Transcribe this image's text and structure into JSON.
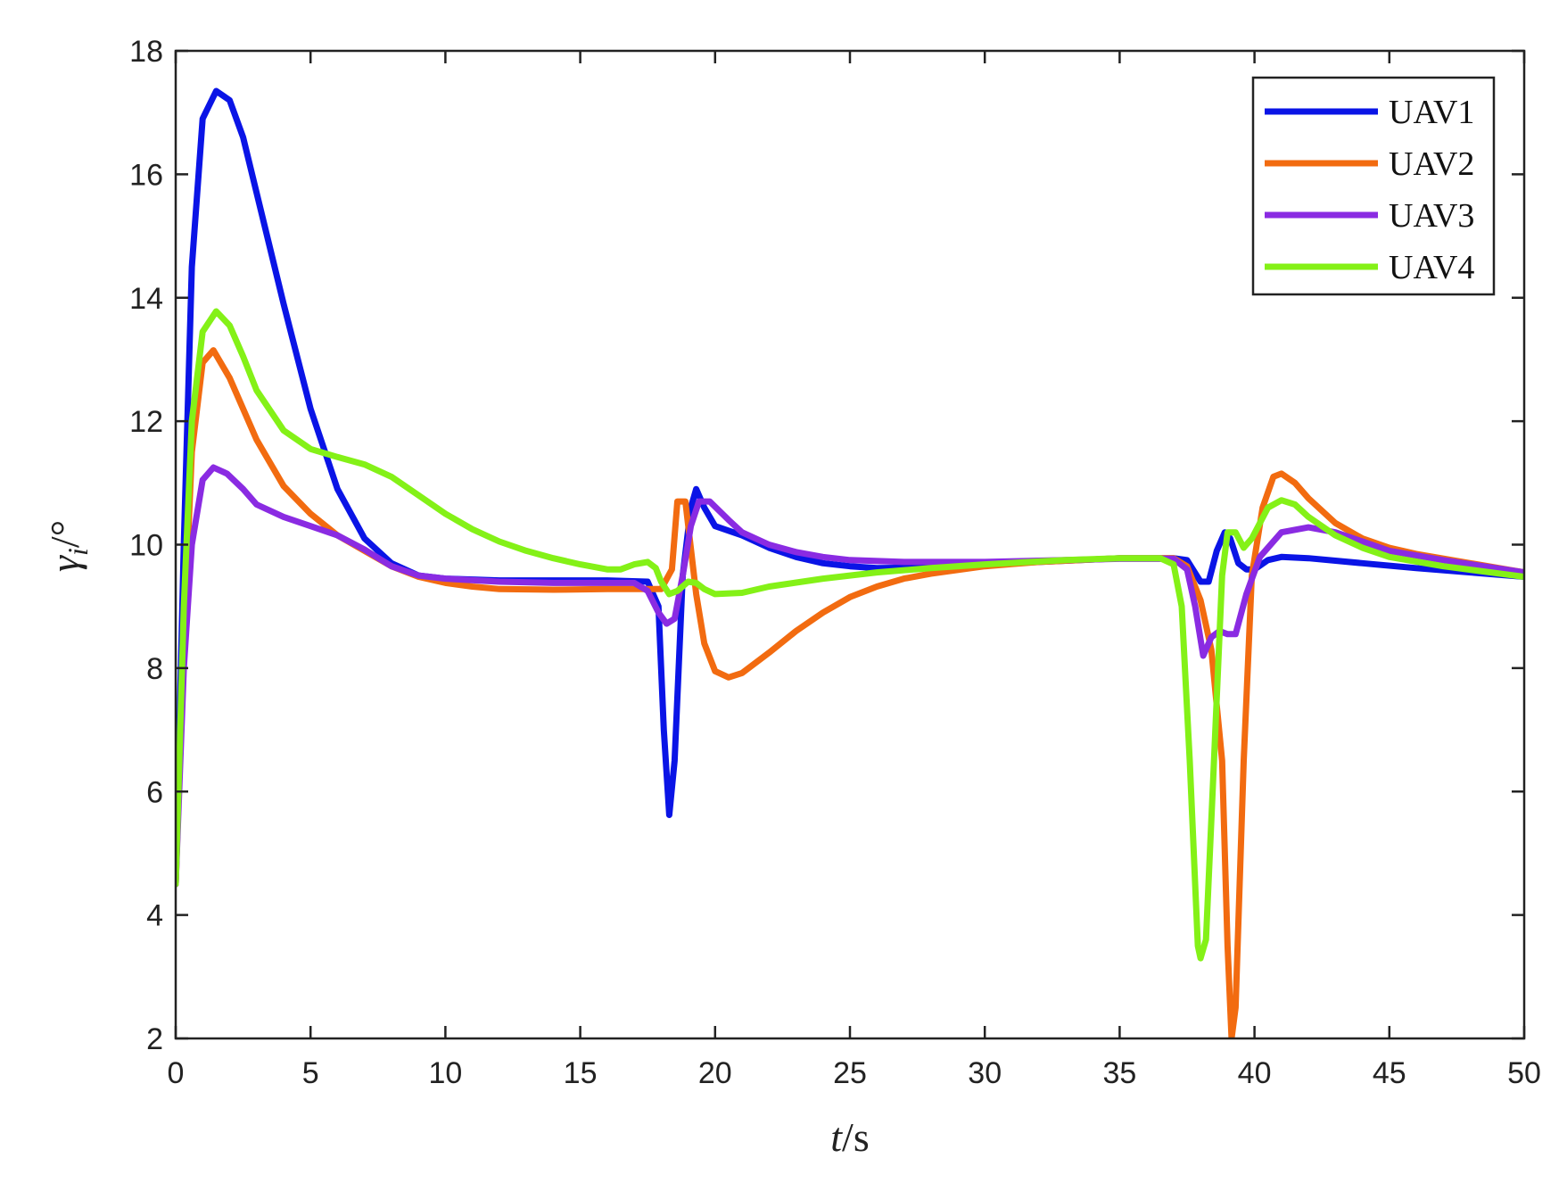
{
  "chart_data": {
    "type": "line",
    "title": "",
    "xlabel": {
      "italic": "t",
      "rest": "/s"
    },
    "ylabel": {
      "italic": "γ",
      "subscript": "i",
      "rest": "/°"
    },
    "xlim": [
      0,
      50
    ],
    "ylim": [
      2,
      18
    ],
    "xticks": [
      0,
      5,
      10,
      15,
      20,
      25,
      30,
      35,
      40,
      45,
      50
    ],
    "yticks": [
      2,
      4,
      6,
      8,
      10,
      12,
      14,
      16,
      18
    ],
    "grid": false,
    "legend_position": "top-right",
    "series": [
      {
        "name": "UAV1",
        "color": "#0a14e6",
        "points": [
          [
            0,
            4.5
          ],
          [
            0.3,
            10
          ],
          [
            0.6,
            14.5
          ],
          [
            1.0,
            16.9
          ],
          [
            1.5,
            17.35
          ],
          [
            2.0,
            17.2
          ],
          [
            2.5,
            16.6
          ],
          [
            3.0,
            15.7
          ],
          [
            4.0,
            13.9
          ],
          [
            5.0,
            12.2
          ],
          [
            6.0,
            10.9
          ],
          [
            7.0,
            10.1
          ],
          [
            8.0,
            9.7
          ],
          [
            9.0,
            9.5
          ],
          [
            10.0,
            9.45
          ],
          [
            12.0,
            9.42
          ],
          [
            14.0,
            9.42
          ],
          [
            16.0,
            9.42
          ],
          [
            17.5,
            9.4
          ],
          [
            17.9,
            9.0
          ],
          [
            18.1,
            7.0
          ],
          [
            18.3,
            5.62
          ],
          [
            18.5,
            6.5
          ],
          [
            18.8,
            9.5
          ],
          [
            19.1,
            10.6
          ],
          [
            19.3,
            10.9
          ],
          [
            19.6,
            10.6
          ],
          [
            20.0,
            10.3
          ],
          [
            21.0,
            10.15
          ],
          [
            22.0,
            9.95
          ],
          [
            23.0,
            9.8
          ],
          [
            24.0,
            9.7
          ],
          [
            25.0,
            9.65
          ],
          [
            26.0,
            9.62
          ],
          [
            28.0,
            9.63
          ],
          [
            30.0,
            9.68
          ],
          [
            32.0,
            9.72
          ],
          [
            35.0,
            9.78
          ],
          [
            37.0,
            9.78
          ],
          [
            37.5,
            9.75
          ],
          [
            38.0,
            9.4
          ],
          [
            38.3,
            9.4
          ],
          [
            38.6,
            9.9
          ],
          [
            38.9,
            10.2
          ],
          [
            39.1,
            10.1
          ],
          [
            39.4,
            9.7
          ],
          [
            39.7,
            9.6
          ],
          [
            40.0,
            9.6
          ],
          [
            40.5,
            9.75
          ],
          [
            41.0,
            9.8
          ],
          [
            42.0,
            9.78
          ],
          [
            44.0,
            9.7
          ],
          [
            46.0,
            9.62
          ],
          [
            48.0,
            9.55
          ],
          [
            50.0,
            9.48
          ]
        ]
      },
      {
        "name": "UAV2",
        "color": "#f26b10",
        "points": [
          [
            0,
            4.5
          ],
          [
            0.3,
            8.5
          ],
          [
            0.6,
            11.5
          ],
          [
            1.0,
            12.95
          ],
          [
            1.4,
            13.15
          ],
          [
            2.0,
            12.7
          ],
          [
            3.0,
            11.7
          ],
          [
            4.0,
            10.95
          ],
          [
            5.0,
            10.5
          ],
          [
            6.0,
            10.15
          ],
          [
            7.0,
            9.9
          ],
          [
            8.0,
            9.65
          ],
          [
            9.0,
            9.48
          ],
          [
            10.0,
            9.38
          ],
          [
            11.0,
            9.32
          ],
          [
            12.0,
            9.28
          ],
          [
            14.0,
            9.27
          ],
          [
            16.0,
            9.28
          ],
          [
            18.0,
            9.28
          ],
          [
            18.4,
            9.6
          ],
          [
            18.6,
            10.7
          ],
          [
            18.9,
            10.7
          ],
          [
            19.3,
            9.2
          ],
          [
            19.6,
            8.4
          ],
          [
            20.0,
            7.95
          ],
          [
            20.5,
            7.85
          ],
          [
            21.0,
            7.92
          ],
          [
            22.0,
            8.25
          ],
          [
            23.0,
            8.6
          ],
          [
            24.0,
            8.9
          ],
          [
            25.0,
            9.15
          ],
          [
            26.0,
            9.32
          ],
          [
            27.0,
            9.45
          ],
          [
            28.0,
            9.53
          ],
          [
            30.0,
            9.65
          ],
          [
            32.0,
            9.72
          ],
          [
            35.0,
            9.78
          ],
          [
            37.0,
            9.78
          ],
          [
            37.5,
            9.65
          ],
          [
            38.0,
            9.1
          ],
          [
            38.4,
            8.3
          ],
          [
            38.8,
            6.5
          ],
          [
            39.0,
            3.5
          ],
          [
            39.15,
            2.0
          ],
          [
            39.3,
            2.5
          ],
          [
            39.6,
            6.5
          ],
          [
            39.9,
            9.5
          ],
          [
            40.3,
            10.6
          ],
          [
            40.7,
            11.1
          ],
          [
            41.0,
            11.15
          ],
          [
            41.5,
            11.0
          ],
          [
            42.0,
            10.75
          ],
          [
            43.0,
            10.35
          ],
          [
            44.0,
            10.1
          ],
          [
            45.0,
            9.95
          ],
          [
            46.0,
            9.85
          ],
          [
            48.0,
            9.7
          ],
          [
            50.0,
            9.55
          ]
        ]
      },
      {
        "name": "UAV3",
        "color": "#8a2be2",
        "points": [
          [
            0,
            4.5
          ],
          [
            0.3,
            8.0
          ],
          [
            0.6,
            10.0
          ],
          [
            1.0,
            11.05
          ],
          [
            1.4,
            11.25
          ],
          [
            1.9,
            11.15
          ],
          [
            2.5,
            10.9
          ],
          [
            3.0,
            10.65
          ],
          [
            4.0,
            10.45
          ],
          [
            5.0,
            10.3
          ],
          [
            6.0,
            10.15
          ],
          [
            7.0,
            9.92
          ],
          [
            8.0,
            9.65
          ],
          [
            9.0,
            9.5
          ],
          [
            10.0,
            9.45
          ],
          [
            12.0,
            9.4
          ],
          [
            14.0,
            9.38
          ],
          [
            16.0,
            9.38
          ],
          [
            17.0,
            9.38
          ],
          [
            17.5,
            9.25
          ],
          [
            17.9,
            8.9
          ],
          [
            18.2,
            8.72
          ],
          [
            18.5,
            8.8
          ],
          [
            18.8,
            9.5
          ],
          [
            19.1,
            10.3
          ],
          [
            19.4,
            10.7
          ],
          [
            19.8,
            10.7
          ],
          [
            20.5,
            10.4
          ],
          [
            21.0,
            10.2
          ],
          [
            22.0,
            10.0
          ],
          [
            23.0,
            9.88
          ],
          [
            24.0,
            9.8
          ],
          [
            25.0,
            9.75
          ],
          [
            27.0,
            9.72
          ],
          [
            30.0,
            9.72
          ],
          [
            33.0,
            9.75
          ],
          [
            35.0,
            9.77
          ],
          [
            37.0,
            9.77
          ],
          [
            37.5,
            9.6
          ],
          [
            37.8,
            9.0
          ],
          [
            38.1,
            8.2
          ],
          [
            38.4,
            8.5
          ],
          [
            38.7,
            8.6
          ],
          [
            39.0,
            8.55
          ],
          [
            39.3,
            8.55
          ],
          [
            39.7,
            9.2
          ],
          [
            40.2,
            9.8
          ],
          [
            41.0,
            10.2
          ],
          [
            42.0,
            10.28
          ],
          [
            43.0,
            10.2
          ],
          [
            44.0,
            10.05
          ],
          [
            45.0,
            9.9
          ],
          [
            47.0,
            9.75
          ],
          [
            50.0,
            9.55
          ]
        ]
      },
      {
        "name": "UAV4",
        "color": "#84f117",
        "points": [
          [
            0,
            4.5
          ],
          [
            0.3,
            9.0
          ],
          [
            0.6,
            12.0
          ],
          [
            1.0,
            13.45
          ],
          [
            1.5,
            13.78
          ],
          [
            2.0,
            13.55
          ],
          [
            2.5,
            13.05
          ],
          [
            3.0,
            12.5
          ],
          [
            4.0,
            11.85
          ],
          [
            5.0,
            11.55
          ],
          [
            6.0,
            11.42
          ],
          [
            7.0,
            11.3
          ],
          [
            8.0,
            11.1
          ],
          [
            9.0,
            10.8
          ],
          [
            10.0,
            10.5
          ],
          [
            11.0,
            10.25
          ],
          [
            12.0,
            10.05
          ],
          [
            13.0,
            9.9
          ],
          [
            14.0,
            9.78
          ],
          [
            15.0,
            9.68
          ],
          [
            16.0,
            9.6
          ],
          [
            16.5,
            9.6
          ],
          [
            17.0,
            9.68
          ],
          [
            17.5,
            9.72
          ],
          [
            17.8,
            9.62
          ],
          [
            18.0,
            9.4
          ],
          [
            18.3,
            9.2
          ],
          [
            18.6,
            9.25
          ],
          [
            19.0,
            9.4
          ],
          [
            19.3,
            9.38
          ],
          [
            19.6,
            9.28
          ],
          [
            20.0,
            9.2
          ],
          [
            21.0,
            9.22
          ],
          [
            22.0,
            9.32
          ],
          [
            24.0,
            9.45
          ],
          [
            26.0,
            9.55
          ],
          [
            28.0,
            9.62
          ],
          [
            30.0,
            9.68
          ],
          [
            33.0,
            9.75
          ],
          [
            35.0,
            9.78
          ],
          [
            36.5,
            9.78
          ],
          [
            37.0,
            9.68
          ],
          [
            37.3,
            9.0
          ],
          [
            37.6,
            6.5
          ],
          [
            37.9,
            3.5
          ],
          [
            38.0,
            3.3
          ],
          [
            38.2,
            3.6
          ],
          [
            38.5,
            6.5
          ],
          [
            38.8,
            9.5
          ],
          [
            39.0,
            10.2
          ],
          [
            39.3,
            10.2
          ],
          [
            39.6,
            9.95
          ],
          [
            39.9,
            10.1
          ],
          [
            40.5,
            10.6
          ],
          [
            41.0,
            10.72
          ],
          [
            41.5,
            10.65
          ],
          [
            42.0,
            10.45
          ],
          [
            43.0,
            10.15
          ],
          [
            44.0,
            9.95
          ],
          [
            45.0,
            9.8
          ],
          [
            47.0,
            9.65
          ],
          [
            50.0,
            9.48
          ]
        ]
      }
    ]
  }
}
